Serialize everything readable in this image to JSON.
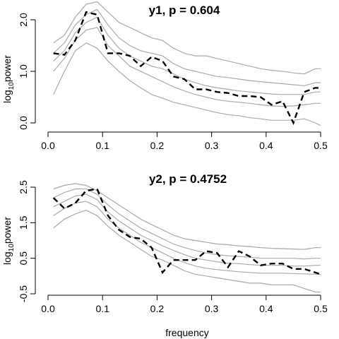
{
  "chart_data": [
    {
      "type": "line",
      "title": "y1, p = 0.604",
      "xlabel": "",
      "ylabel_base": "log",
      "ylabel_sub": "10",
      "ylabel_rest": "power",
      "xlim": [
        0.0,
        0.5
      ],
      "ylim": [
        0.0,
        2.4
      ],
      "xticks": [
        0.0,
        0.1,
        0.2,
        0.3,
        0.4,
        0.5
      ],
      "xtick_labels": [
        "0.0",
        "0.1",
        "0.2",
        "0.3",
        "0.4",
        "0.5"
      ],
      "yticks": [
        0.0,
        1.0,
        2.0
      ],
      "ytick_labels": [
        "0.0",
        "1.0",
        "2.0"
      ],
      "x": [
        0.01,
        0.03,
        0.05,
        0.07,
        0.09,
        0.11,
        0.13,
        0.15,
        0.17,
        0.19,
        0.21,
        0.23,
        0.25,
        0.27,
        0.29,
        0.31,
        0.33,
        0.35,
        0.37,
        0.39,
        0.41,
        0.43,
        0.45,
        0.47,
        0.49,
        0.5
      ],
      "series": [
        {
          "role": "envelope",
          "values": [
            1.55,
            1.7,
            2.05,
            2.3,
            2.35,
            2.15,
            1.95,
            1.85,
            1.75,
            1.65,
            1.6,
            1.45,
            1.35,
            1.3,
            1.3,
            1.25,
            1.2,
            1.15,
            1.1,
            1.05,
            1.02,
            1.0,
            0.97,
            0.95,
            1.05,
            1.05
          ]
        },
        {
          "role": "envelope",
          "values": [
            1.35,
            1.55,
            1.9,
            2.1,
            2.2,
            1.9,
            1.65,
            1.5,
            1.4,
            1.35,
            1.3,
            1.15,
            1.05,
            1.0,
            0.95,
            0.9,
            0.88,
            0.85,
            0.82,
            0.8,
            0.78,
            0.76,
            0.74,
            0.72,
            0.78,
            0.78
          ]
        },
        {
          "role": "envelope",
          "values": [
            1.2,
            1.4,
            1.75,
            1.95,
            2.05,
            1.7,
            1.45,
            1.3,
            1.2,
            1.1,
            1.05,
            0.95,
            0.85,
            0.78,
            0.72,
            0.68,
            0.65,
            0.62,
            0.6,
            0.58,
            0.56,
            0.55,
            0.55,
            0.55,
            0.6,
            0.6
          ]
        },
        {
          "role": "envelope",
          "values": [
            1.0,
            1.25,
            1.6,
            1.8,
            1.85,
            1.5,
            1.3,
            1.1,
            1.0,
            0.9,
            0.8,
            0.7,
            0.62,
            0.55,
            0.5,
            0.45,
            0.42,
            0.4,
            0.38,
            0.35,
            0.33,
            0.32,
            0.33,
            0.35,
            0.38,
            0.38
          ]
        },
        {
          "role": "envelope",
          "values": [
            0.55,
            1.0,
            1.4,
            1.55,
            1.45,
            1.2,
            1.0,
            0.82,
            0.68,
            0.55,
            0.48,
            0.4,
            0.35,
            0.3,
            0.25,
            0.2,
            0.16,
            0.14,
            0.1,
            0.08,
            0.05,
            0.05,
            0.05,
            0.08,
            0.0,
            -0.05
          ]
        },
        {
          "role": "observed",
          "values": [
            1.35,
            1.32,
            1.6,
            2.15,
            2.1,
            1.35,
            1.35,
            1.3,
            1.1,
            1.28,
            1.2,
            0.9,
            0.85,
            0.65,
            0.65,
            0.6,
            0.58,
            0.52,
            0.52,
            0.5,
            0.35,
            0.42,
            0.0,
            0.6,
            0.68,
            0.68
          ]
        }
      ]
    },
    {
      "type": "line",
      "title": "y2, p = 0.4752",
      "xlabel": "frequency",
      "ylabel_base": "log",
      "ylabel_sub": "10",
      "ylabel_rest": "power",
      "xlim": [
        0.0,
        0.5
      ],
      "ylim": [
        -0.5,
        2.8
      ],
      "xticks": [
        0.0,
        0.1,
        0.2,
        0.3,
        0.4,
        0.5
      ],
      "xtick_labels": [
        "0.0",
        "0.1",
        "0.2",
        "0.3",
        "0.4",
        "0.5"
      ],
      "yticks": [
        -0.5,
        0.5,
        1.5,
        2.5
      ],
      "ytick_labels": [
        "-0.5",
        "0.5",
        "1.5",
        "2.5"
      ],
      "x": [
        0.01,
        0.03,
        0.05,
        0.07,
        0.09,
        0.11,
        0.13,
        0.15,
        0.17,
        0.19,
        0.21,
        0.23,
        0.25,
        0.27,
        0.29,
        0.31,
        0.33,
        0.35,
        0.37,
        0.39,
        0.41,
        0.43,
        0.45,
        0.47,
        0.49,
        0.5
      ],
      "series": [
        {
          "role": "envelope",
          "values": [
            2.45,
            2.55,
            2.6,
            2.55,
            2.4,
            2.2,
            2.0,
            1.8,
            1.6,
            1.45,
            1.3,
            1.15,
            1.05,
            1.0,
            0.95,
            0.9,
            0.88,
            0.85,
            0.83,
            0.8,
            0.78,
            0.77,
            0.76,
            0.75,
            0.8,
            0.8
          ]
        },
        {
          "role": "envelope",
          "values": [
            2.2,
            2.35,
            2.45,
            2.45,
            2.3,
            2.0,
            1.75,
            1.55,
            1.35,
            1.2,
            1.05,
            0.9,
            0.8,
            0.72,
            0.65,
            0.6,
            0.57,
            0.55,
            0.53,
            0.5,
            0.5,
            0.5,
            0.5,
            0.48,
            0.5,
            0.5
          ]
        },
        {
          "role": "envelope",
          "values": [
            1.95,
            2.1,
            2.25,
            2.3,
            2.15,
            1.8,
            1.55,
            1.35,
            1.15,
            1.0,
            0.85,
            0.72,
            0.6,
            0.5,
            0.45,
            0.4,
            0.36,
            0.35,
            0.32,
            0.3,
            0.3,
            0.3,
            0.28,
            0.28,
            0.3,
            0.3
          ]
        },
        {
          "role": "envelope",
          "values": [
            1.7,
            1.9,
            2.05,
            2.1,
            1.95,
            1.6,
            1.35,
            1.15,
            0.95,
            0.8,
            0.65,
            0.5,
            0.38,
            0.28,
            0.22,
            0.18,
            0.15,
            0.12,
            0.1,
            0.08,
            0.08,
            0.08,
            0.07,
            0.06,
            0.05,
            0.05
          ]
        },
        {
          "role": "envelope",
          "values": [
            1.35,
            1.6,
            1.75,
            1.85,
            1.7,
            1.4,
            1.15,
            0.95,
            0.75,
            0.55,
            0.45,
            0.3,
            0.15,
            0.05,
            0.0,
            -0.05,
            -0.1,
            -0.15,
            -0.2,
            -0.2,
            -0.25,
            -0.25,
            -0.25,
            -0.35,
            -0.45,
            -0.45
          ]
        },
        {
          "role": "observed",
          "values": [
            2.2,
            1.9,
            2.05,
            2.4,
            2.45,
            1.7,
            1.3,
            1.1,
            1.05,
            0.8,
            0.1,
            0.45,
            0.45,
            0.45,
            0.7,
            0.65,
            0.25,
            0.7,
            0.55,
            0.3,
            0.35,
            0.35,
            0.2,
            0.2,
            0.1,
            0.05
          ]
        }
      ]
    }
  ]
}
